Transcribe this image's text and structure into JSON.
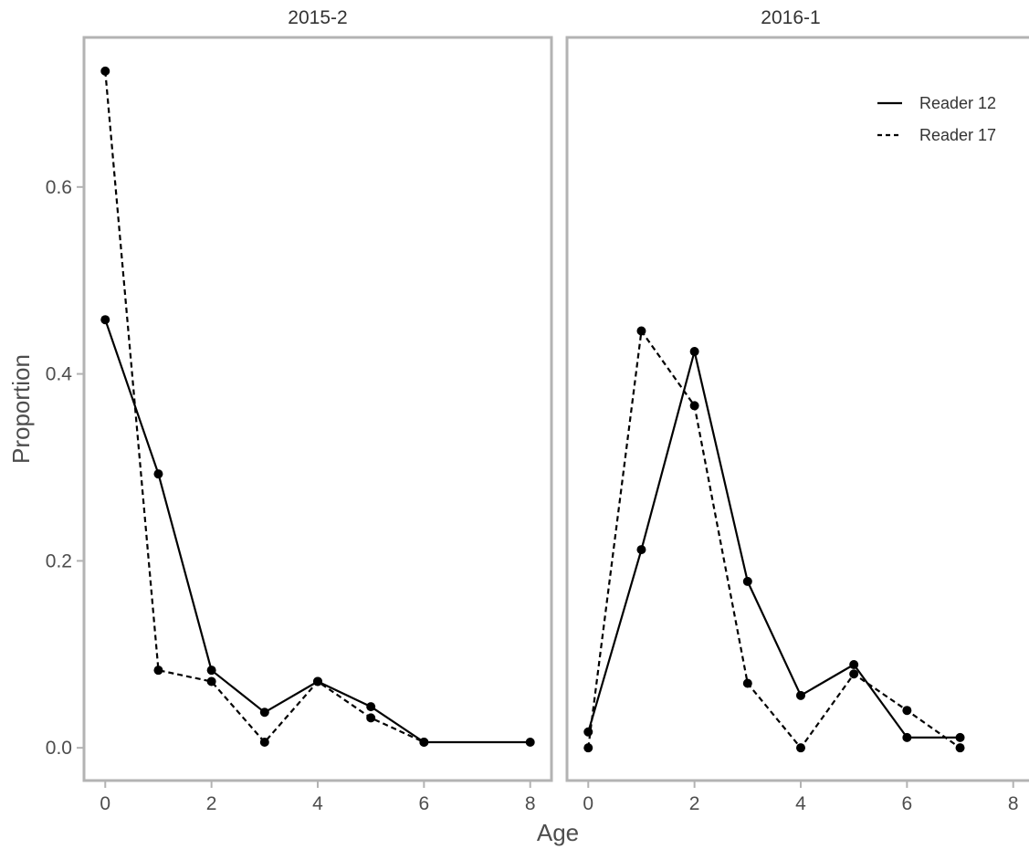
{
  "chart_data": {
    "type": "line",
    "xlabel": "Age",
    "ylabel": "Proportion",
    "xticks": [
      0,
      2,
      4,
      6,
      8
    ],
    "yticks": [
      0.0,
      0.2,
      0.4,
      0.6
    ],
    "ytick_labels": [
      "0.0",
      "0.2",
      "0.4",
      "0.6"
    ],
    "xlim": [
      -0.4,
      8.4
    ],
    "ylim": [
      -0.035,
      0.76
    ],
    "grid": false,
    "legend": {
      "placement": "top-right",
      "entries": [
        {
          "label": "Reader 12",
          "style": "solid"
        },
        {
          "label": "Reader 17",
          "style": "dashed"
        }
      ]
    },
    "panels": [
      {
        "title": "2015-2",
        "series": [
          {
            "name": "Reader 12",
            "style": "solid",
            "x": [
              0,
              1,
              2,
              3,
              4,
              5,
              6,
              8
            ],
            "y": [
              0.458,
              0.293,
              0.083,
              0.038,
              0.071,
              0.044,
              0.006,
              0.006
            ]
          },
          {
            "name": "Reader 17",
            "style": "dashed",
            "x": [
              0,
              1,
              2,
              3,
              4,
              5,
              6
            ],
            "y": [
              0.724,
              0.083,
              0.071,
              0.006,
              0.071,
              0.032,
              0.006
            ]
          }
        ]
      },
      {
        "title": "2016-1",
        "series": [
          {
            "name": "Reader 12",
            "style": "solid",
            "x": [
              0,
              1,
              2,
              3,
              4,
              5,
              6,
              7
            ],
            "y": [
              0.017,
              0.212,
              0.424,
              0.178,
              0.056,
              0.089,
              0.011,
              0.011
            ]
          },
          {
            "name": "Reader 17",
            "style": "dashed",
            "x": [
              0,
              1,
              2,
              3,
              4,
              5,
              6,
              7
            ],
            "y": [
              0.0,
              0.446,
              0.366,
              0.069,
              0.0,
              0.079,
              0.04,
              0.0
            ]
          }
        ]
      }
    ]
  }
}
